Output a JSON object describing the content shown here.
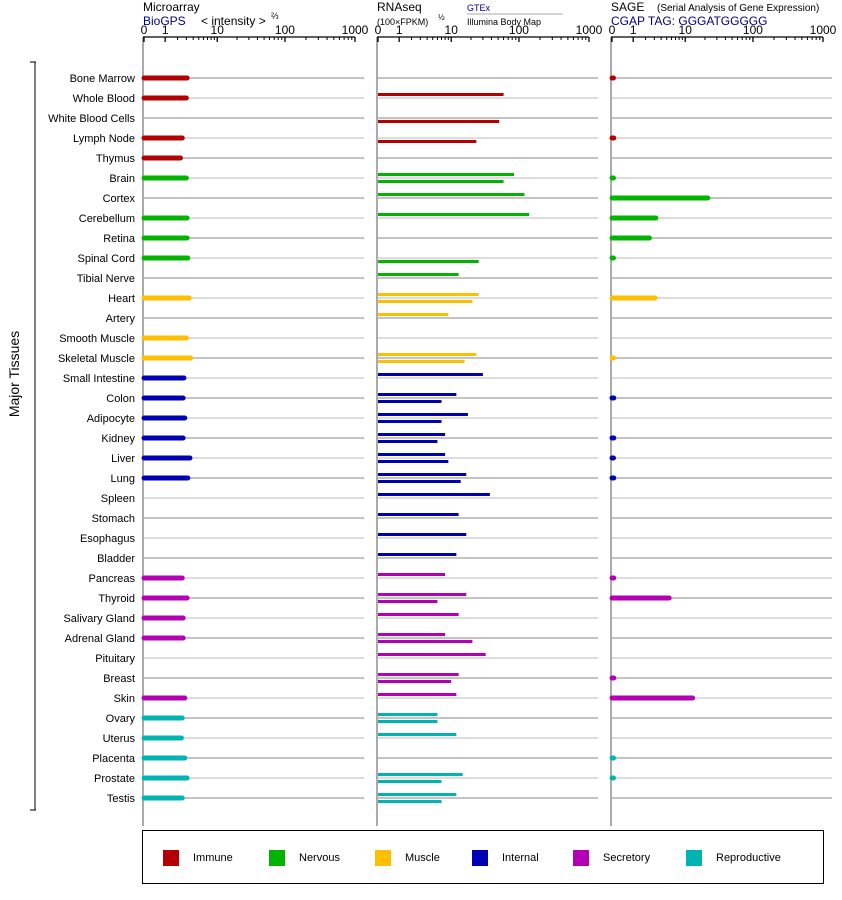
{
  "header": {
    "microarray_title": "Microarray",
    "microarray_source": "BioGPS",
    "microarray_unit": "< intensity >",
    "microarray_exp": "⅔",
    "rnaseq_title": "RNAseq",
    "rnaseq_unit": "(100×FPKM)",
    "rnaseq_exp": "½",
    "rnaseq_source1": "GTEx",
    "rnaseq_source2": "Illumina Body Map",
    "sage_title": "SAGE",
    "sage_subtitle": "(Serial Analysis of Gene Expression)",
    "sage_tag": "CGAP  TAG: GGGATGGGGG"
  },
  "y_axis_label": "Major Tissues",
  "tick_labels": [
    "0",
    "1",
    "10",
    "100",
    "1000"
  ],
  "chart_data": {
    "type": "bar",
    "categories": [
      "Bone Marrow",
      "Whole Blood",
      "White Blood Cells",
      "Lymph Node",
      "Thymus",
      "Brain",
      "Cortex",
      "Cerebellum",
      "Retina",
      "Spinal Cord",
      "Tibial Nerve",
      "Heart",
      "Artery",
      "Smooth Muscle",
      "Skeletal Muscle",
      "Small Intestine",
      "Colon",
      "Adipocyte",
      "Kidney",
      "Liver",
      "Lung",
      "Spleen",
      "Stomach",
      "Esophagus",
      "Bladder",
      "Pancreas",
      "Thyroid",
      "Salivary Gland",
      "Adrenal Gland",
      "Pituitary",
      "Breast",
      "Skin",
      "Ovary",
      "Uterus",
      "Placenta",
      "Prostate",
      "Testis"
    ],
    "groups": [
      "Immune",
      "Immune",
      "Immune",
      "Immune",
      "Immune",
      "Nervous",
      "Nervous",
      "Nervous",
      "Nervous",
      "Nervous",
      "Nervous",
      "Muscle",
      "Muscle",
      "Muscle",
      "Muscle",
      "Internal",
      "Internal",
      "Internal",
      "Internal",
      "Internal",
      "Internal",
      "Internal",
      "Internal",
      "Internal",
      "Internal",
      "Secretory",
      "Secretory",
      "Secretory",
      "Secretory",
      "Secretory",
      "Secretory",
      "Secretory",
      "Reproductive",
      "Reproductive",
      "Reproductive",
      "Reproductive",
      "Reproductive"
    ],
    "colors": {
      "Immune": "#b40000",
      "Nervous": "#00b400",
      "Muscle": "#ffbe00",
      "Internal": "#0000b4",
      "Secretory": "#b400b4",
      "Reproductive": "#00b4b4"
    },
    "axis": {
      "scale": "log1p",
      "range": [
        0,
        1000
      ],
      "ticks": [
        0,
        1,
        10,
        100,
        1000
      ]
    },
    "panels": [
      {
        "name": "Microarray",
        "values": [
          3.1,
          3.0,
          null,
          2.5,
          2.3,
          3.0,
          null,
          3.1,
          3.1,
          3.2,
          null,
          3.4,
          null,
          3.0,
          3.6,
          2.7,
          2.6,
          2.8,
          2.6,
          3.5,
          3.2,
          null,
          null,
          null,
          null,
          2.5,
          3.1,
          2.6,
          2.6,
          null,
          null,
          2.8,
          2.5,
          2.4,
          2.8,
          3.1,
          2.5
        ]
      },
      {
        "name": "RNAseq GTEx",
        "values": [
          null,
          60,
          null,
          null,
          null,
          85,
          120,
          140,
          null,
          null,
          13,
          26,
          9,
          null,
          24,
          30,
          12,
          18,
          8,
          8,
          17,
          38,
          13,
          17,
          12,
          8,
          17,
          13,
          8,
          33,
          13,
          12,
          6,
          12,
          null,
          15,
          12
        ]
      },
      {
        "name": "RNAseq Illumina Body Map",
        "values": [
          null,
          null,
          52,
          24,
          null,
          60,
          null,
          null,
          null,
          26,
          null,
          21,
          null,
          null,
          16,
          null,
          7,
          7,
          6,
          9,
          14,
          null,
          null,
          null,
          null,
          null,
          6,
          null,
          21,
          null,
          10,
          null,
          6,
          null,
          null,
          7,
          7
        ]
      },
      {
        "name": "SAGE",
        "values": [
          0.05,
          null,
          null,
          0.06,
          null,
          0.05,
          22,
          3.2,
          2.4,
          0.05,
          null,
          3.1,
          null,
          null,
          0.03,
          null,
          0.06,
          null,
          0.06,
          0.05,
          0.06,
          null,
          null,
          null,
          null,
          0.06,
          5.5,
          null,
          null,
          null,
          0.06,
          13,
          null,
          null,
          0.05,
          0.05,
          null
        ]
      }
    ]
  },
  "legend": [
    {
      "label": "Immune",
      "color": "#b40000"
    },
    {
      "label": "Nervous",
      "color": "#00b400"
    },
    {
      "label": "Muscle",
      "color": "#ffbe00"
    },
    {
      "label": "Internal",
      "color": "#0000b4"
    },
    {
      "label": "Secretory",
      "color": "#b400b4"
    },
    {
      "label": "Reproductive",
      "color": "#00b4b4"
    }
  ]
}
